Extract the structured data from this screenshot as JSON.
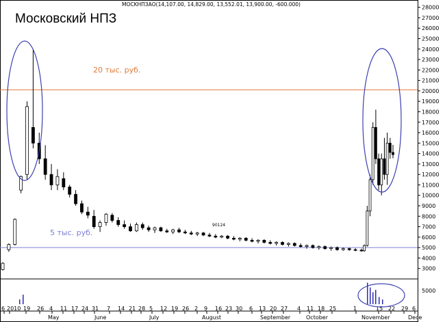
{
  "chart_data": {
    "type": "candlestick",
    "title": "Московский НПЗ",
    "subtitle": "MOCKНПЗАО(14,107.00, 14,829.00, 13,552.01, 13,900.00, -600.000)",
    "ylim": [
      2000,
      28500
    ],
    "y_ticks": [
      3000,
      4000,
      5000,
      6000,
      7000,
      8000,
      9000,
      10000,
      11000,
      12000,
      13000,
      14000,
      15000,
      16000,
      17000,
      18000,
      19000,
      20000,
      21000,
      22000,
      23000,
      24000,
      25000,
      26000,
      27000,
      28000
    ],
    "volume_tick": "5000",
    "reference_lines": [
      {
        "label": "20 тыс. руб.",
        "value": 20100,
        "color": "#e07a3c"
      },
      {
        "label": "5 тыс. руб.",
        "value": 5000,
        "color": "#7b7fd8"
      }
    ],
    "annotation": "90124",
    "x_day_labels": [
      "6",
      "2010",
      "19",
      "26",
      "4",
      "11",
      "17",
      "24",
      "31",
      "7",
      "14",
      "21",
      "28",
      "5",
      "12",
      "19",
      "26",
      "2",
      "9",
      "16",
      "23",
      "30",
      "6",
      "13",
      "20",
      "27",
      "4",
      "11",
      "18",
      "25",
      "1",
      "15",
      "22",
      "29",
      "6"
    ],
    "months": [
      "May",
      "June",
      "July",
      "August",
      "September",
      "October",
      "November",
      "Dece"
    ],
    "ohlc": [
      {
        "o": 2900,
        "h": 3600,
        "l": 2800,
        "c": 3500
      },
      {
        "o": 4800,
        "h": 5400,
        "l": 4600,
        "c": 5300
      },
      {
        "o": 5300,
        "h": 7800,
        "l": 5200,
        "c": 7700
      },
      {
        "o": 10500,
        "h": 11900,
        "l": 10200,
        "c": 11800
      },
      {
        "o": 12000,
        "h": 19000,
        "l": 11500,
        "c": 18500
      },
      {
        "o": 16500,
        "h": 24000,
        "l": 14500,
        "c": 15000
      },
      {
        "o": 15000,
        "h": 16000,
        "l": 13000,
        "c": 13500
      },
      {
        "o": 13500,
        "h": 14800,
        "l": 11500,
        "c": 12000
      },
      {
        "o": 12000,
        "h": 13000,
        "l": 10500,
        "c": 11000
      },
      {
        "o": 11000,
        "h": 12500,
        "l": 10500,
        "c": 11800
      },
      {
        "o": 11600,
        "h": 12200,
        "l": 10500,
        "c": 10800
      },
      {
        "o": 10800,
        "h": 11000,
        "l": 9800,
        "c": 10100
      },
      {
        "o": 10100,
        "h": 10500,
        "l": 9000,
        "c": 9200
      },
      {
        "o": 9200,
        "h": 9500,
        "l": 8200,
        "c": 8400
      },
      {
        "o": 8400,
        "h": 8900,
        "l": 7800,
        "c": 8100
      },
      {
        "o": 8000,
        "h": 8600,
        "l": 6800,
        "c": 7000
      },
      {
        "o": 7000,
        "h": 7600,
        "l": 6500,
        "c": 7400
      },
      {
        "o": 7400,
        "h": 8300,
        "l": 7100,
        "c": 8200
      },
      {
        "o": 8100,
        "h": 8300,
        "l": 7400,
        "c": 7600
      },
      {
        "o": 7600,
        "h": 7900,
        "l": 7000,
        "c": 7200
      },
      {
        "o": 7200,
        "h": 7600,
        "l": 6800,
        "c": 7000
      },
      {
        "o": 7000,
        "h": 7300,
        "l": 6500,
        "c": 6600
      },
      {
        "o": 6600,
        "h": 7400,
        "l": 6500,
        "c": 7200
      },
      {
        "o": 7200,
        "h": 7400,
        "l": 6700,
        "c": 6900
      },
      {
        "o": 6900,
        "h": 7100,
        "l": 6500,
        "c": 6700
      },
      {
        "o": 6700,
        "h": 7000,
        "l": 6400,
        "c": 6900
      },
      {
        "o": 6900,
        "h": 7000,
        "l": 6500,
        "c": 6600
      },
      {
        "o": 6600,
        "h": 6800,
        "l": 6400,
        "c": 6500
      },
      {
        "o": 6500,
        "h": 6800,
        "l": 6300,
        "c": 6700
      },
      {
        "o": 6700,
        "h": 6900,
        "l": 6400,
        "c": 6500
      },
      {
        "o": 6500,
        "h": 6700,
        "l": 6300,
        "c": 6400
      },
      {
        "o": 6400,
        "h": 6600,
        "l": 6200,
        "c": 6300
      },
      {
        "o": 6300,
        "h": 6500,
        "l": 6100,
        "c": 6400
      },
      {
        "o": 6400,
        "h": 6500,
        "l": 6100,
        "c": 6200
      },
      {
        "o": 6200,
        "h": 6400,
        "l": 6000,
        "c": 6100
      },
      {
        "o": 6100,
        "h": 6300,
        "l": 5900,
        "c": 6000
      },
      {
        "o": 6000,
        "h": 6200,
        "l": 5900,
        "c": 6100
      },
      {
        "o": 6100,
        "h": 6200,
        "l": 5800,
        "c": 5900
      },
      {
        "o": 5900,
        "h": 6100,
        "l": 5700,
        "c": 5800
      },
      {
        "o": 5800,
        "h": 6000,
        "l": 5600,
        "c": 5900
      },
      {
        "o": 5900,
        "h": 6000,
        "l": 5600,
        "c": 5700
      },
      {
        "o": 5700,
        "h": 5900,
        "l": 5500,
        "c": 5600
      },
      {
        "o": 5600,
        "h": 5800,
        "l": 5400,
        "c": 5700
      },
      {
        "o": 5700,
        "h": 5800,
        "l": 5400,
        "c": 5500
      },
      {
        "o": 5500,
        "h": 5700,
        "l": 5300,
        "c": 5400
      },
      {
        "o": 5400,
        "h": 5600,
        "l": 5200,
        "c": 5500
      },
      {
        "o": 5500,
        "h": 5600,
        "l": 5200,
        "c": 5300
      },
      {
        "o": 5300,
        "h": 5500,
        "l": 5100,
        "c": 5400
      },
      {
        "o": 5400,
        "h": 5500,
        "l": 5100,
        "c": 5200
      },
      {
        "o": 5200,
        "h": 5400,
        "l": 5000,
        "c": 5100
      },
      {
        "o": 5100,
        "h": 5300,
        "l": 4900,
        "c": 5200
      },
      {
        "o": 5200,
        "h": 5300,
        "l": 4900,
        "c": 5000
      },
      {
        "o": 5000,
        "h": 5200,
        "l": 4800,
        "c": 5100
      },
      {
        "o": 5100,
        "h": 5200,
        "l": 4800,
        "c": 4900
      },
      {
        "o": 4900,
        "h": 5100,
        "l": 4700,
        "c": 5000
      },
      {
        "o": 5000,
        "h": 5100,
        "l": 4700,
        "c": 4800
      },
      {
        "o": 4800,
        "h": 5000,
        "l": 4700,
        "c": 4900
      },
      {
        "o": 4900,
        "h": 5000,
        "l": 4700,
        "c": 4800
      },
      {
        "o": 4800,
        "h": 4950,
        "l": 4650,
        "c": 4750
      },
      {
        "o": 4750,
        "h": 4900,
        "l": 4600,
        "c": 4700
      },
      {
        "o": 4700,
        "h": 5300,
        "l": 4600,
        "c": 5200
      },
      {
        "o": 5200,
        "h": 9000,
        "l": 5100,
        "c": 8500
      },
      {
        "o": 8500,
        "h": 12000,
        "l": 8000,
        "c": 11500
      },
      {
        "o": 11500,
        "h": 17000,
        "l": 11000,
        "c": 16500
      },
      {
        "o": 16500,
        "h": 18200,
        "l": 13000,
        "c": 13500
      },
      {
        "o": 13500,
        "h": 14000,
        "l": 10500,
        "c": 11000
      },
      {
        "o": 11000,
        "h": 14000,
        "l": 10000,
        "c": 13500
      },
      {
        "o": 13500,
        "h": 15500,
        "l": 11500,
        "c": 12000
      },
      {
        "o": 12000,
        "h": 16000,
        "l": 11000,
        "c": 15000
      },
      {
        "o": 15000,
        "h": 15500,
        "l": 13500,
        "c": 14107
      },
      {
        "o": 14107,
        "h": 14829,
        "l": 13552,
        "c": 13900
      }
    ],
    "volume_spikes": [
      0.2,
      0.4,
      0.9,
      0.7,
      0.5,
      0.6,
      0.3,
      0.2
    ]
  }
}
